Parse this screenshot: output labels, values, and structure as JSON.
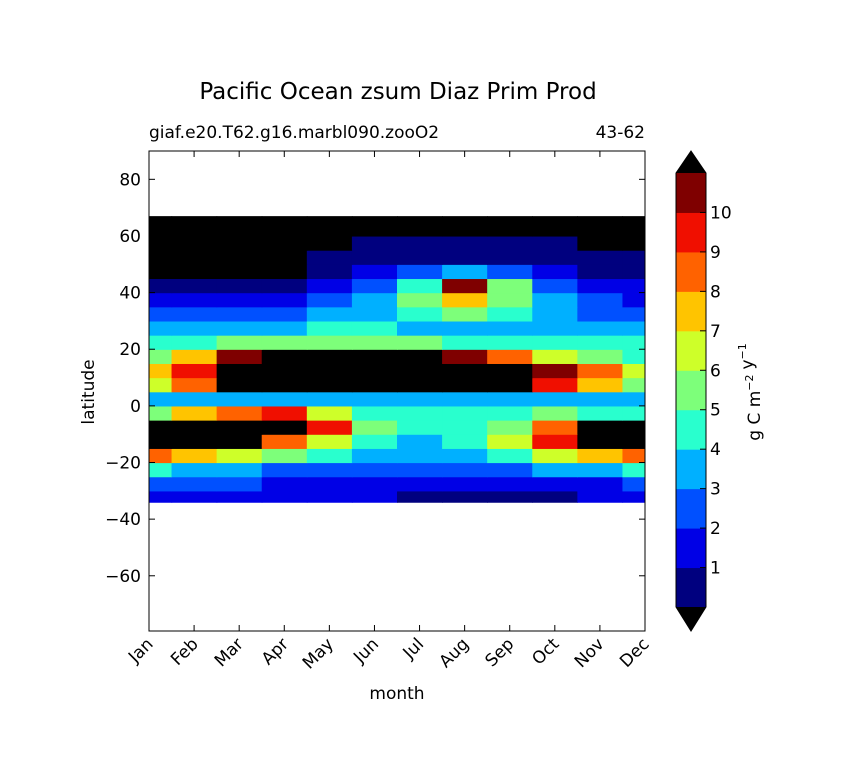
{
  "chart_data": {
    "type": "contour",
    "title": "Pacific Ocean zsum Diaz Prim Prod",
    "subtitle_left": "giaf.e20.T62.g16.marbl090.zooO2",
    "subtitle_right": "43-62",
    "xlabel": "month",
    "ylabel": "latitude",
    "categories": [
      "Jan",
      "Feb",
      "Mar",
      "Apr",
      "May",
      "Jun",
      "Jul",
      "Aug",
      "Sep",
      "Oct",
      "Nov",
      "Dec"
    ],
    "y_edges": [
      -34,
      -30,
      -25,
      -20,
      -15,
      -10,
      -5,
      0,
      5,
      10,
      15,
      20,
      25,
      30,
      35,
      40,
      45,
      50,
      55,
      60,
      67
    ],
    "z": [
      [
        1.5,
        1.5,
        1.5,
        1.5,
        1.5,
        1.5,
        0.8,
        0.5,
        0.5,
        0.8,
        1.5,
        1.5
      ],
      [
        2.5,
        2.5,
        2,
        1.5,
        1.5,
        1.5,
        1.5,
        1.5,
        1.5,
        1.5,
        1.5,
        2
      ],
      [
        4,
        3.5,
        3,
        2.5,
        2.5,
        2.5,
        2.5,
        2.5,
        2.5,
        3,
        3.5,
        4
      ],
      [
        8,
        7,
        6,
        5,
        4,
        3.5,
        3.5,
        3.5,
        4,
        6,
        7,
        8
      ],
      [
        12,
        12,
        11.5,
        8,
        6,
        4.5,
        3.5,
        4,
        6,
        9,
        12,
        12
      ],
      [
        12,
        12,
        12,
        12,
        9,
        5.5,
        4.5,
        4,
        5,
        8,
        12,
        12
      ],
      [
        5,
        7,
        8,
        9,
        6,
        4.5,
        4.5,
        4,
        4.5,
        5,
        4.5,
        4.5
      ],
      [
        3.5,
        3.5,
        3.5,
        3.5,
        3.5,
        3.5,
        3.5,
        3.5,
        3.5,
        3.5,
        3.5,
        3.5
      ],
      [
        6,
        8,
        12,
        12,
        12,
        12,
        12,
        12,
        12,
        9,
        7,
        5
      ],
      [
        7,
        9,
        12,
        12,
        12,
        12,
        12,
        12,
        12,
        10,
        8,
        6
      ],
      [
        5,
        7,
        10,
        12,
        12,
        12,
        12,
        10,
        8,
        6,
        5,
        4.5
      ],
      [
        4,
        4.5,
        5,
        5.5,
        5,
        5,
        5,
        4.5,
        4.5,
        4,
        4,
        4
      ],
      [
        3,
        3,
        3.5,
        3.5,
        4,
        4,
        3.5,
        3.5,
        3.5,
        3.5,
        3,
        3
      ],
      [
        2.5,
        2.5,
        2.5,
        2.5,
        3,
        3.5,
        4.5,
        5,
        4.5,
        3.5,
        2.5,
        2.5
      ],
      [
        1.5,
        1.5,
        1.5,
        1.5,
        2,
        3,
        5.5,
        7,
        5.5,
        3,
        2,
        1.5
      ],
      [
        0.5,
        0.5,
        0.5,
        0.5,
        1.5,
        2.5,
        4.5,
        10.5,
        5,
        2.5,
        1.5,
        1
      ],
      [
        12,
        12,
        12,
        12,
        0.5,
        1.5,
        2.5,
        3,
        2,
        1.5,
        0.5,
        0.5
      ],
      [
        12,
        12,
        12,
        12,
        0.5,
        0.5,
        0.5,
        0.5,
        0.5,
        0.5,
        0.5,
        0.5
      ],
      [
        12,
        12,
        12,
        12,
        12,
        0.5,
        0.5,
        0.5,
        0.5,
        0.5,
        12,
        12
      ],
      [
        12,
        12,
        12,
        12,
        12,
        12,
        12,
        12,
        12,
        12,
        12,
        12
      ]
    ],
    "ylim": [
      -79.5,
      90
    ],
    "yticks": [
      {
        "value": -60,
        "label": "−60"
      },
      {
        "value": -40,
        "label": "−40"
      },
      {
        "value": -20,
        "label": "−20"
      },
      0,
      20,
      40,
      60,
      80
    ],
    "levels": [
      0,
      1,
      2,
      3,
      4,
      5,
      6,
      7,
      8,
      9,
      10,
      11
    ],
    "colors": [
      "#00007f",
      "#0000e6",
      "#0050ff",
      "#00b0ff",
      "#29ffce",
      "#7dff7a",
      "#ceff29",
      "#ffc400",
      "#ff6200",
      "#f00f00",
      "#7f0000"
    ],
    "extend_color": "#000000",
    "colorbar_ticks": [
      1,
      2,
      3,
      4,
      5,
      6,
      7,
      8,
      9,
      10
    ],
    "colorbar_label": [
      {
        "text": "g C m",
        "sup": "−2"
      },
      {
        "text": "y",
        "sup": "−1"
      }
    ]
  }
}
